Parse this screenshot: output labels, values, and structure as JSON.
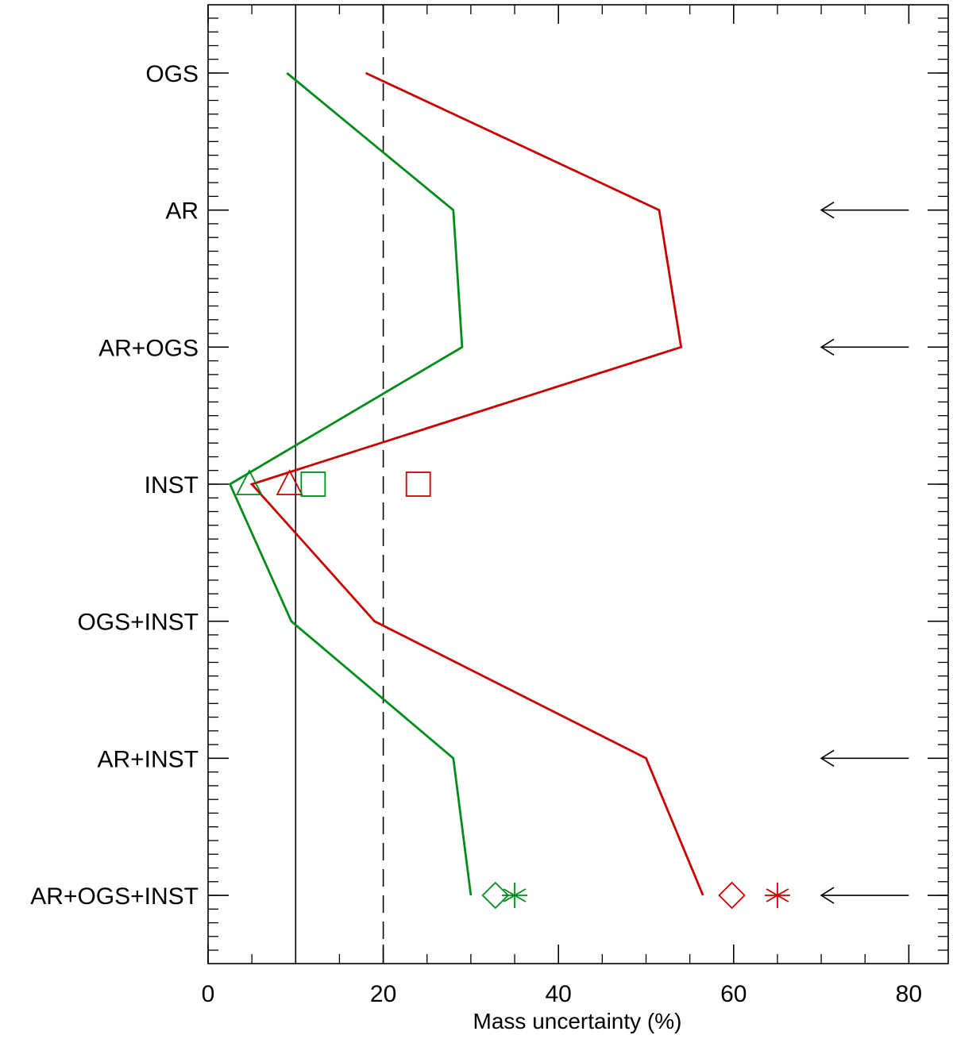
{
  "chart_data": {
    "type": "line",
    "orientation": "horizontal",
    "xlabel": "Mass uncertainty (%)",
    "xlim": [
      0,
      84.5
    ],
    "xticks": [
      0,
      20,
      40,
      60,
      80
    ],
    "categories": [
      "OGS",
      "AR",
      "AR+OGS",
      "INST",
      "OGS+INST",
      "AR+INST",
      "AR+OGS+INST"
    ],
    "grid": false,
    "series": [
      {
        "color": "#008c1a",
        "values": [
          9,
          28,
          29,
          2.5,
          9.5,
          28,
          30
        ]
      },
      {
        "color": "#c80000",
        "values": [
          18,
          51.5,
          54,
          5,
          19,
          50,
          56.5
        ]
      }
    ],
    "markers": [
      {
        "shape": "triangle",
        "color": "#008c1a",
        "x": 4.7,
        "category": "INST"
      },
      {
        "shape": "triangle",
        "color": "#c80000",
        "x": 9.3,
        "category": "INST"
      },
      {
        "shape": "square",
        "color": "#008c1a",
        "x": 12,
        "category": "INST"
      },
      {
        "shape": "square",
        "color": "#c80000",
        "x": 24,
        "category": "INST"
      },
      {
        "shape": "diamond",
        "color": "#008c1a",
        "x": 32.8,
        "category": "AR+OGS+INST"
      },
      {
        "shape": "asterisk",
        "color": "#008c1a",
        "x": 35,
        "category": "AR+OGS+INST"
      },
      {
        "shape": "diamond",
        "color": "#c80000",
        "x": 59.8,
        "category": "AR+OGS+INST"
      },
      {
        "shape": "asterisk",
        "color": "#c80000",
        "x": 65,
        "category": "AR+OGS+INST"
      }
    ],
    "reference_lines": [
      {
        "x": 10,
        "style": "solid",
        "color": "#000000"
      },
      {
        "x": 20,
        "style": "dashed",
        "color": "#000000"
      }
    ],
    "arrows": [
      {
        "from_x": 80,
        "to_x": 70,
        "category": "AR"
      },
      {
        "from_x": 80,
        "to_x": 70,
        "category": "AR+OGS"
      },
      {
        "from_x": 80,
        "to_x": 70,
        "category": "AR+INST"
      },
      {
        "from_x": 80,
        "to_x": 70,
        "category": "AR+OGS+INST"
      }
    ]
  }
}
